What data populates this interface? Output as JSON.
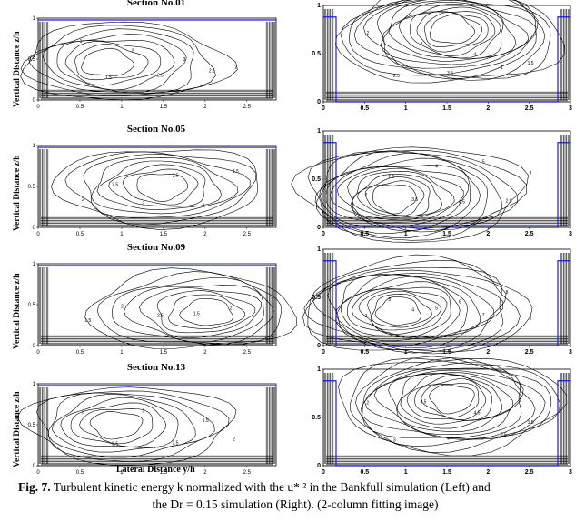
{
  "sections": [
    {
      "title": "Section No.01",
      "left_labels": [
        "1",
        "1.5",
        "2",
        "2.5",
        "3",
        "2.5",
        "2"
      ],
      "right_labels": [
        "2",
        "2.5",
        "3",
        "3.5",
        "4",
        "1",
        "1.5"
      ]
    },
    {
      "title": "Section No.05",
      "left_labels": [
        "2",
        "2.5",
        "3",
        "2.5",
        "1",
        "1.5"
      ],
      "right_labels": [
        "2",
        "2.5",
        "3.5",
        "4",
        "4.5",
        "5",
        "2.5",
        "3"
      ]
    },
    {
      "title": "Section No.09",
      "left_labels": [
        "1.5",
        "2",
        "2.5",
        "1.5",
        "2"
      ],
      "right_labels": [
        "2",
        "3",
        "4",
        "5",
        "6",
        "7",
        "8",
        "2"
      ]
    },
    {
      "title": "Section No.13",
      "left_labels": [
        "2",
        "2.5",
        "3",
        "2.5",
        "1.5",
        "2"
      ],
      "right_labels": [
        "2",
        "3",
        "3.5",
        "4",
        "4.5",
        "2.5",
        "1.5"
      ]
    }
  ],
  "y_axis_label": "Vertical Distance z/h",
  "x_axis_label": "Lateral Distance y/h",
  "left_x_ticks": [
    "0",
    "0.5",
    "1",
    "1.5",
    "2",
    "2.5"
  ],
  "left_y_ticks": [
    "0",
    "0.5",
    "1"
  ],
  "right_x_ticks": [
    "0",
    "0.5",
    "1",
    "1.5",
    "2",
    "2.5",
    "3"
  ],
  "right_y_ticks": [
    "0",
    "0.5",
    "1"
  ],
  "caption": {
    "fig_label": "Fig. 7.",
    "text_line1": " Turbulent kinetic energy k normalized with the u* ² in the Bankfull simulation (Left) and",
    "text_line2": "the Dr = 0.15 simulation (Right). (2-column fitting image)"
  },
  "colors": {
    "water_surface": "#1a1adb",
    "contour": "#000000"
  }
}
